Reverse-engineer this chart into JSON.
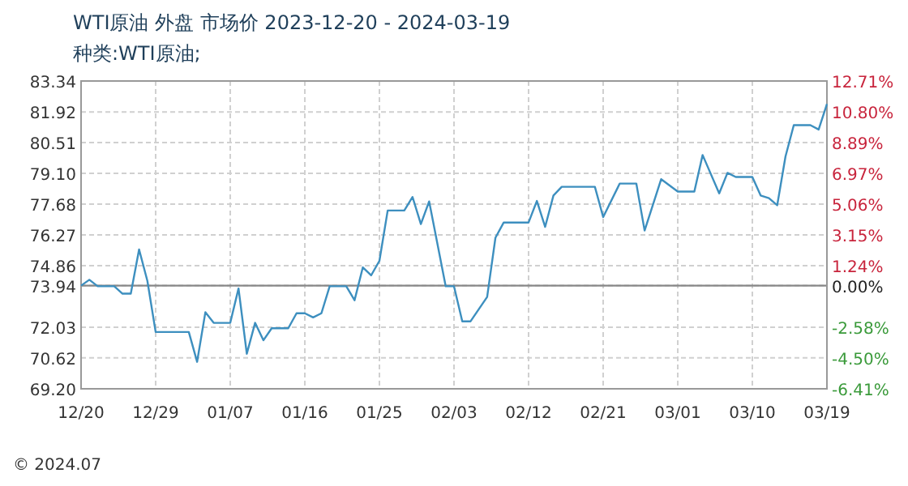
{
  "chart_data": {
    "type": "line",
    "title": "WTI原油 外盘 市场价 2023-12-20 - 2024-03-19",
    "subtitle": "种类:WTI原油;",
    "x": [
      "2023-12-20",
      "2023-12-21",
      "2023-12-22",
      "2023-12-24",
      "2023-12-25",
      "2023-12-26",
      "2023-12-27",
      "2023-12-28",
      "2023-12-29",
      "2024-01-02",
      "2024-01-03",
      "2024-01-04",
      "2024-01-05",
      "2024-01-07",
      "2024-01-08",
      "2024-01-09",
      "2024-01-10",
      "2024-01-11",
      "2024-01-12",
      "2024-01-14",
      "2024-01-15",
      "2024-01-16",
      "2024-01-17",
      "2024-01-18",
      "2024-01-19",
      "2024-01-21",
      "2024-01-22",
      "2024-01-23",
      "2024-01-24",
      "2024-01-25",
      "2024-01-26",
      "2024-01-28",
      "2024-01-29",
      "2024-01-30",
      "2024-01-31",
      "2024-02-02",
      "2024-02-03",
      "2024-02-04",
      "2024-02-05",
      "2024-02-07",
      "2024-02-08",
      "2024-02-09",
      "2024-02-12",
      "2024-02-13",
      "2024-02-14",
      "2024-02-15",
      "2024-02-16",
      "2024-02-20",
      "2024-02-21",
      "2024-02-23",
      "2024-02-25",
      "2024-02-26",
      "2024-02-28",
      "2024-03-01",
      "2024-03-03",
      "2024-03-04",
      "2024-03-06",
      "2024-03-07",
      "2024-03-08",
      "2024-03-10",
      "2024-03-11",
      "2024-03-12",
      "2024-03-13",
      "2024-03-14",
      "2024-03-15",
      "2024-03-17",
      "2024-03-18",
      "2024-03-19"
    ],
    "values": [
      73.94,
      74.21,
      73.91,
      73.91,
      73.57,
      73.57,
      75.6,
      74.16,
      71.81,
      71.81,
      70.44,
      72.72,
      72.23,
      72.23,
      73.81,
      70.81,
      72.23,
      71.43,
      71.98,
      71.98,
      72.67,
      72.67,
      72.48,
      72.67,
      73.91,
      73.91,
      73.27,
      74.78,
      74.41,
      75.08,
      77.39,
      77.39,
      78.01,
      76.77,
      77.81,
      73.91,
      73.91,
      72.3,
      72.3,
      73.42,
      76.14,
      76.84,
      76.84,
      77.83,
      76.64,
      78.08,
      78.48,
      78.48,
      77.09,
      78.63,
      78.63,
      76.47,
      78.83,
      78.26,
      78.26,
      79.94,
      78.18,
      79.12,
      78.93,
      78.93,
      78.08,
      77.96,
      77.63,
      79.87,
      81.31,
      81.31,
      81.11,
      82.28
    ],
    "color": "#3d8fbf",
    "xlim": [
      "2023-12-20",
      "2024-03-19"
    ],
    "xticks": [
      {
        "value": "2023-12-20",
        "label": "12/20"
      },
      {
        "value": "2023-12-29",
        "label": "12/29"
      },
      {
        "value": "2024-01-07",
        "label": "01/07"
      },
      {
        "value": "2024-01-16",
        "label": "01/16"
      },
      {
        "value": "2024-01-25",
        "label": "01/25"
      },
      {
        "value": "2024-02-03",
        "label": "02/03"
      },
      {
        "value": "2024-02-12",
        "label": "02/12"
      },
      {
        "value": "2024-02-21",
        "label": "02/21"
      },
      {
        "value": "2024-03-01",
        "label": "03/01"
      },
      {
        "value": "2024-03-10",
        "label": "03/10"
      },
      {
        "value": "2024-03-19",
        "label": "03/19"
      }
    ],
    "ylim": [
      69.2,
      83.34
    ],
    "yticks": [
      83.34,
      81.92,
      80.51,
      {
        "value": 79.1,
        "label": "79.10"
      },
      77.68,
      76.27,
      74.86,
      73.94,
      72.03,
      70.62,
      {
        "value": 69.2,
        "label": "69.20"
      }
    ],
    "y2lim": [
      -6.41,
      12.71
    ],
    "y2ticks": [
      {
        "value": 12.71,
        "label": "12.71%"
      },
      {
        "value": 10.8,
        "label": "10.80%"
      },
      {
        "value": 8.89,
        "label": "8.89%"
      },
      {
        "value": 6.97,
        "label": "6.97%"
      },
      {
        "value": 5.06,
        "label": "5.06%"
      },
      {
        "value": 3.15,
        "label": "3.15%"
      },
      {
        "value": 1.24,
        "label": "1.24%"
      },
      {
        "value": 0,
        "label": "0.00%"
      },
      {
        "value": -2.58,
        "label": "-2.58%"
      },
      {
        "value": -4.5,
        "label": "-4.50%"
      },
      {
        "value": -6.41,
        "label": "-6.41%"
      }
    ],
    "ref_lines": [
      {
        "axis": "y",
        "value": 73.94,
        "color": "#888888"
      }
    ],
    "grid": true,
    "annotations": [
      "© 2024.07"
    ]
  }
}
